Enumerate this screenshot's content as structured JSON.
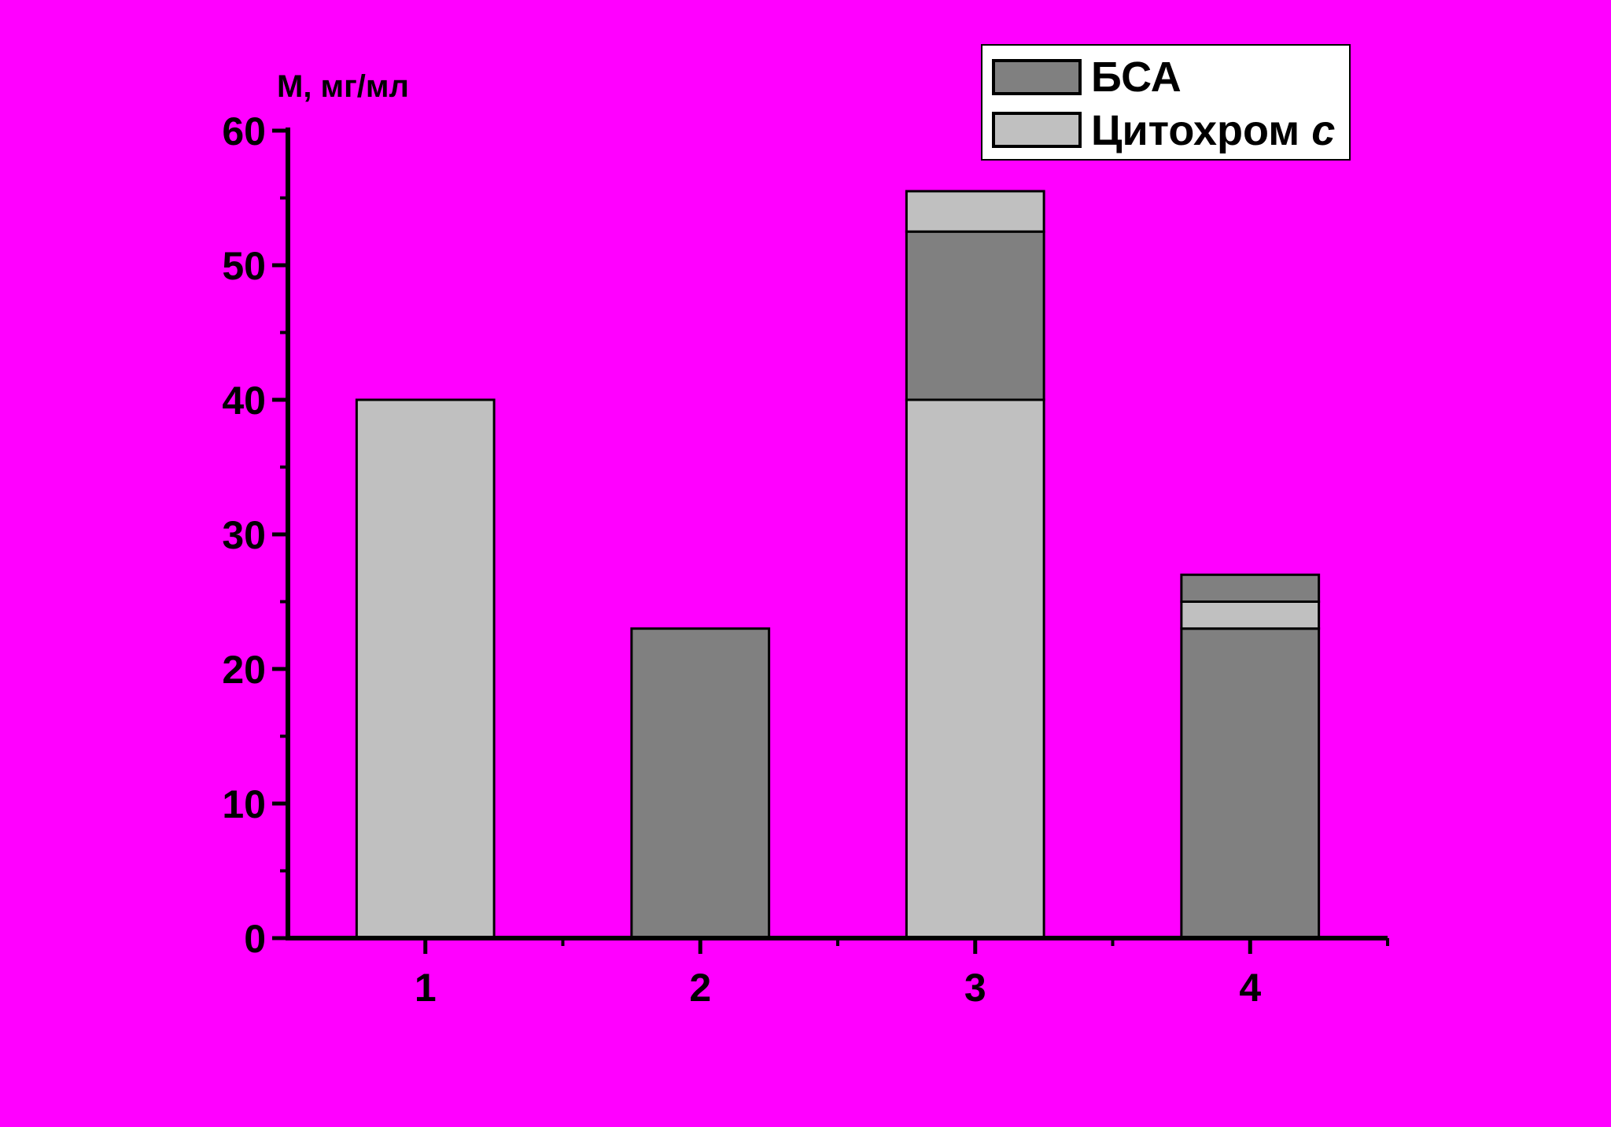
{
  "chart_data": {
    "type": "bar",
    "stacked": true,
    "ylabel": "М, мг/мл",
    "xlabel": "",
    "ylim": [
      0,
      60
    ],
    "yticks": [
      0,
      10,
      20,
      30,
      40,
      50,
      60
    ],
    "categories": [
      "1",
      "2",
      "3",
      "4"
    ],
    "legend": {
      "position": "top-right",
      "entries": [
        {
          "label": "БСА",
          "italic_suffix": "",
          "series_key": "bsa"
        },
        {
          "label": "Цитохром ",
          "italic_suffix": "c",
          "series_key": "cyt"
        }
      ]
    },
    "colors": {
      "plot_background": "#FF00FF",
      "page_background": "#000000",
      "bsa": "#808080",
      "cyt": "#C0C0C0",
      "stroke": "#000000"
    },
    "series": [
      {
        "key": "bsa",
        "name": "БСА"
      },
      {
        "key": "cyt",
        "name": "Цитохром c"
      }
    ],
    "stacks": [
      {
        "category": "1",
        "segments": [
          {
            "series": "cyt",
            "value": 40
          }
        ]
      },
      {
        "category": "2",
        "segments": [
          {
            "series": "bsa",
            "value": 23
          }
        ]
      },
      {
        "category": "3",
        "segments": [
          {
            "series": "cyt",
            "value": 40
          },
          {
            "series": "bsa",
            "value": 12.5
          },
          {
            "series": "cyt",
            "value": 3
          }
        ]
      },
      {
        "category": "4",
        "segments": [
          {
            "series": "bsa",
            "value": 23
          },
          {
            "series": "cyt",
            "value": 2
          },
          {
            "series": "bsa",
            "value": 2
          }
        ]
      }
    ],
    "grid": false
  }
}
